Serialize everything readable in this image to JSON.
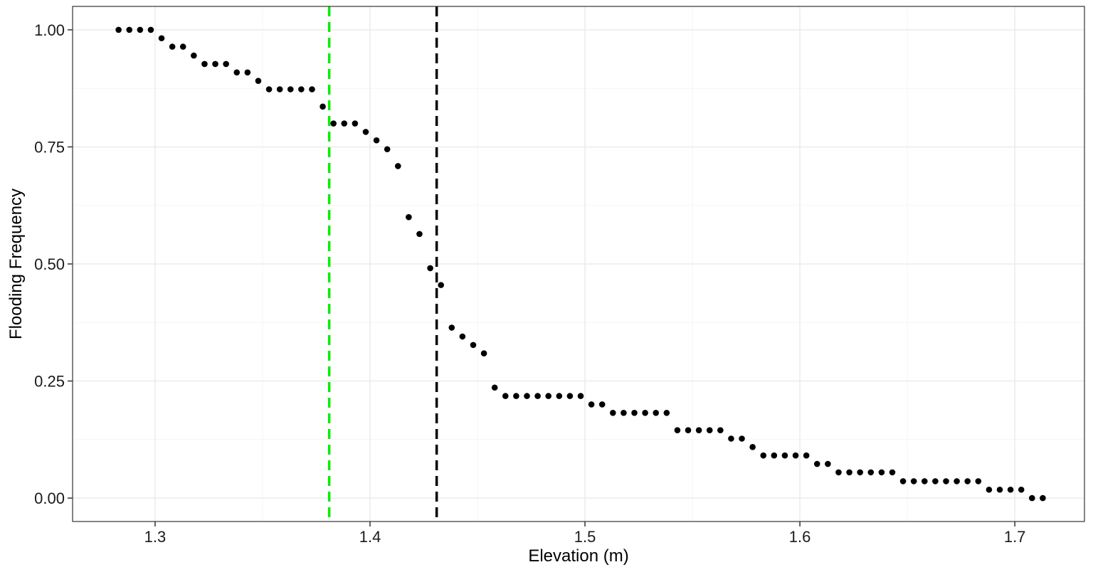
{
  "chart_data": {
    "type": "scatter",
    "title": "",
    "xlabel": "Elevation (m)",
    "ylabel": "Flooding Frequency",
    "xlim": [
      1.2616,
      1.7324
    ],
    "ylim": [
      -0.05,
      1.05
    ],
    "x_ticks": [
      1.3,
      1.4,
      1.5,
      1.6,
      1.7
    ],
    "x_tick_labels": [
      "1.3",
      "1.4",
      "1.5",
      "1.6",
      "1.7"
    ],
    "y_ticks": [
      0,
      0.25,
      0.5,
      0.75,
      1
    ],
    "y_tick_labels": [
      "0.00",
      "0.25",
      "0.50",
      "0.75",
      "1.00"
    ],
    "grid": true,
    "point_color": "#000000",
    "reference_lines": [
      {
        "x": 1.381,
        "color": "#00ee00",
        "style": "dashed"
      },
      {
        "x": 1.431,
        "color": "#000000",
        "style": "dashed"
      }
    ],
    "points": [
      [
        1.283,
        1.0
      ],
      [
        1.288,
        1.0
      ],
      [
        1.293,
        1.0
      ],
      [
        1.298,
        1.0
      ],
      [
        1.303,
        0.982
      ],
      [
        1.308,
        0.964
      ],
      [
        1.313,
        0.964
      ],
      [
        1.318,
        0.945
      ],
      [
        1.323,
        0.927
      ],
      [
        1.328,
        0.927
      ],
      [
        1.333,
        0.927
      ],
      [
        1.338,
        0.909
      ],
      [
        1.343,
        0.909
      ],
      [
        1.348,
        0.891
      ],
      [
        1.353,
        0.873
      ],
      [
        1.358,
        0.873
      ],
      [
        1.363,
        0.873
      ],
      [
        1.368,
        0.873
      ],
      [
        1.373,
        0.873
      ],
      [
        1.378,
        0.836
      ],
      [
        1.383,
        0.8
      ],
      [
        1.388,
        0.8
      ],
      [
        1.393,
        0.8
      ],
      [
        1.398,
        0.782
      ],
      [
        1.403,
        0.764
      ],
      [
        1.408,
        0.745
      ],
      [
        1.413,
        0.709
      ],
      [
        1.418,
        0.6
      ],
      [
        1.423,
        0.564
      ],
      [
        1.428,
        0.491
      ],
      [
        1.433,
        0.455
      ],
      [
        1.438,
        0.364
      ],
      [
        1.443,
        0.345
      ],
      [
        1.448,
        0.327
      ],
      [
        1.453,
        0.309
      ],
      [
        1.458,
        0.236
      ],
      [
        1.463,
        0.218
      ],
      [
        1.468,
        0.218
      ],
      [
        1.473,
        0.218
      ],
      [
        1.478,
        0.218
      ],
      [
        1.483,
        0.218
      ],
      [
        1.488,
        0.218
      ],
      [
        1.493,
        0.218
      ],
      [
        1.498,
        0.218
      ],
      [
        1.503,
        0.2
      ],
      [
        1.508,
        0.2
      ],
      [
        1.513,
        0.182
      ],
      [
        1.518,
        0.182
      ],
      [
        1.523,
        0.182
      ],
      [
        1.528,
        0.182
      ],
      [
        1.533,
        0.182
      ],
      [
        1.538,
        0.182
      ],
      [
        1.543,
        0.145
      ],
      [
        1.548,
        0.145
      ],
      [
        1.553,
        0.145
      ],
      [
        1.558,
        0.145
      ],
      [
        1.563,
        0.145
      ],
      [
        1.568,
        0.127
      ],
      [
        1.573,
        0.127
      ],
      [
        1.578,
        0.109
      ],
      [
        1.583,
        0.091
      ],
      [
        1.588,
        0.091
      ],
      [
        1.593,
        0.091
      ],
      [
        1.598,
        0.091
      ],
      [
        1.603,
        0.091
      ],
      [
        1.608,
        0.073
      ],
      [
        1.613,
        0.073
      ],
      [
        1.618,
        0.055
      ],
      [
        1.623,
        0.055
      ],
      [
        1.628,
        0.055
      ],
      [
        1.633,
        0.055
      ],
      [
        1.638,
        0.055
      ],
      [
        1.643,
        0.055
      ],
      [
        1.648,
        0.036
      ],
      [
        1.653,
        0.036
      ],
      [
        1.658,
        0.036
      ],
      [
        1.663,
        0.036
      ],
      [
        1.668,
        0.036
      ],
      [
        1.673,
        0.036
      ],
      [
        1.678,
        0.036
      ],
      [
        1.683,
        0.036
      ],
      [
        1.688,
        0.018
      ],
      [
        1.693,
        0.018
      ],
      [
        1.698,
        0.018
      ],
      [
        1.703,
        0.018
      ],
      [
        1.708,
        0.0
      ],
      [
        1.713,
        0.0
      ]
    ]
  }
}
